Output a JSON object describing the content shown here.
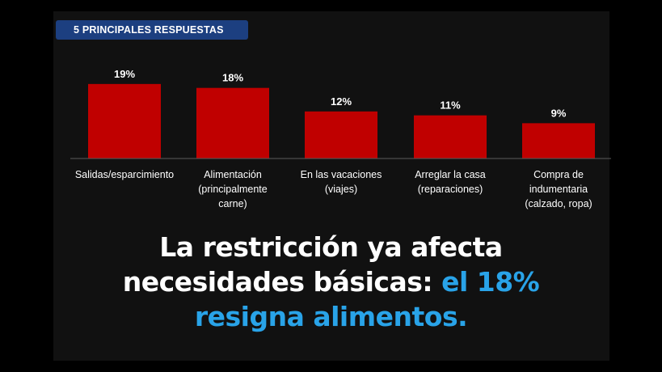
{
  "colors": {
    "background": "#000000",
    "panel": "#111111",
    "badge": "#1c3f80",
    "bar": "#c00000",
    "text": "#ffffff",
    "highlight": "#29a3e8"
  },
  "header": {
    "title": "5 PRINCIPALES RESPUESTAS"
  },
  "chart_data": {
    "type": "bar",
    "title": "5 PRINCIPALES RESPUESTAS",
    "categories": [
      [
        "Salidas/esparcimiento"
      ],
      [
        "Alimentación",
        "(principalmente",
        "carne)"
      ],
      [
        "En las vacaciones",
        "(viajes)"
      ],
      [
        "Arreglar la casa",
        "(reparaciones)"
      ],
      [
        "Compra de",
        "indumentaria",
        "(calzado, ropa)"
      ]
    ],
    "values": [
      19,
      18,
      12,
      11,
      9
    ],
    "data_labels": [
      "19%",
      "18%",
      "12%",
      "11%",
      "9%"
    ],
    "unit": "%",
    "ylim": [
      0,
      22
    ],
    "grid": false,
    "legend": "none"
  },
  "headline": {
    "line1": "La restricción ya afecta",
    "line2_plain": "necesidades básicas: ",
    "line2_highlight": "el 18%",
    "line3_highlight": "resigna alimentos."
  }
}
